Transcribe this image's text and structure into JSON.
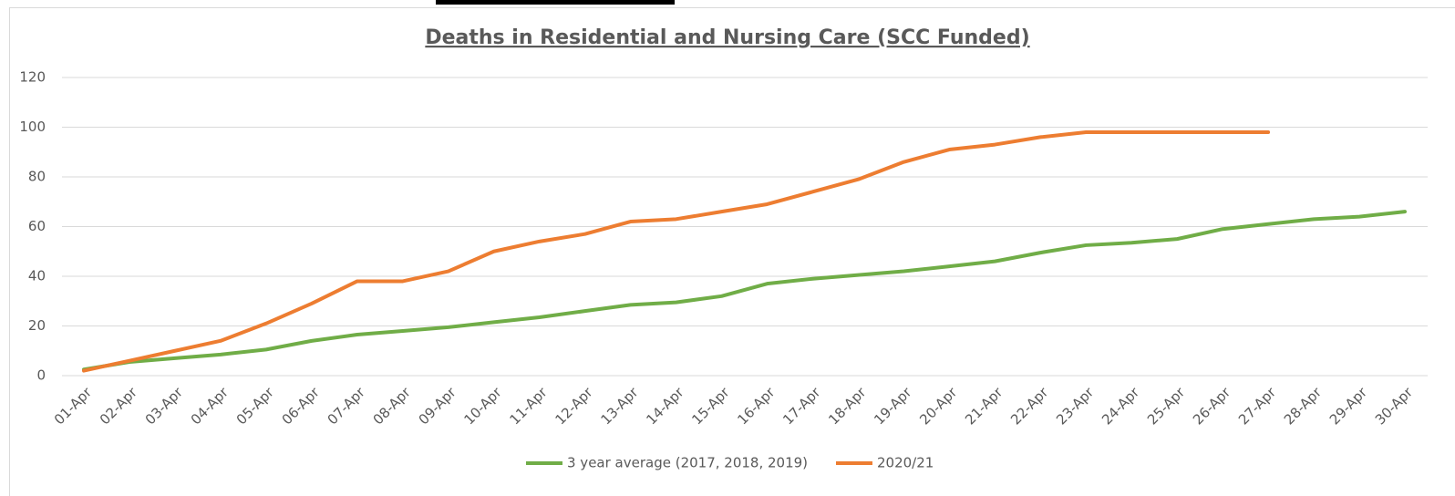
{
  "chart_data": {
    "type": "line",
    "title": "Deaths in Residential and Nursing Care (SCC Funded)",
    "categories": [
      "01-Apr",
      "02-Apr",
      "03-Apr",
      "04-Apr",
      "05-Apr",
      "06-Apr",
      "07-Apr",
      "08-Apr",
      "09-Apr",
      "10-Apr",
      "11-Apr",
      "12-Apr",
      "13-Apr",
      "14-Apr",
      "15-Apr",
      "16-Apr",
      "17-Apr",
      "18-Apr",
      "19-Apr",
      "20-Apr",
      "21-Apr",
      "22-Apr",
      "23-Apr",
      "24-Apr",
      "25-Apr",
      "26-Apr",
      "27-Apr",
      "28-Apr",
      "29-Apr",
      "30-Apr"
    ],
    "series": [
      {
        "name": "3 year average (2017, 2018, 2019)",
        "color": "#70ad47",
        "values": [
          2.5,
          5.5,
          7,
          8.5,
          10.5,
          14,
          16.5,
          18,
          19.5,
          21.5,
          23.5,
          26,
          28.5,
          29.5,
          32,
          37,
          39,
          40.5,
          42,
          44,
          46,
          49.5,
          52.5,
          53.5,
          55,
          59,
          61,
          63,
          64,
          66
        ]
      },
      {
        "name": "2020/21",
        "color": "#ed7d31",
        "values": [
          2,
          6,
          10,
          14,
          21,
          29,
          38,
          38,
          42,
          50,
          54,
          57,
          62,
          63,
          66,
          69,
          74,
          79,
          86,
          91,
          93,
          96,
          98,
          98,
          98,
          98,
          98,
          null,
          null,
          null
        ]
      }
    ],
    "ylim": [
      0,
      120
    ],
    "yticks": [
      0,
      20,
      40,
      60,
      80,
      100,
      120
    ],
    "grid": true,
    "legend": "bottom"
  }
}
